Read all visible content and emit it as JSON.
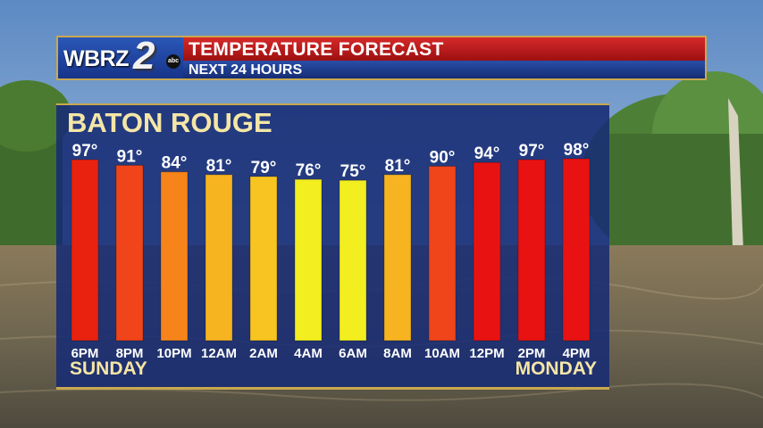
{
  "header": {
    "logo": "WBRZ",
    "logo_number": "2",
    "logo_network": "abc",
    "title": "TEMPERATURE FORECAST",
    "subtitle": "NEXT 24 HOURS"
  },
  "panel": {
    "city": "BATON ROUGE",
    "day_start": "SUNDAY",
    "day_end": "MONDAY"
  },
  "colors": {
    "hot": "#e81212",
    "orange_red": "#f0441a",
    "orange": "#f7841a",
    "amber": "#f7b421",
    "yellow": "#f2ee1f",
    "panel": "#172b74",
    "label": "#f5e6a6"
  },
  "chart_data": {
    "type": "bar",
    "title": "TEMPERATURE FORECAST",
    "subtitle": "NEXT 24 HOURS",
    "categories": [
      "6PM",
      "8PM",
      "10PM",
      "12AM",
      "2AM",
      "4AM",
      "6AM",
      "8AM",
      "10AM",
      "12PM",
      "2PM",
      "4PM"
    ],
    "values": [
      97,
      91,
      84,
      81,
      79,
      76,
      75,
      81,
      90,
      94,
      97,
      98
    ],
    "value_labels": [
      "97°",
      "91°",
      "84°",
      "81°",
      "79°",
      "76°",
      "75°",
      "81°",
      "90°",
      "94°",
      "97°",
      "98°"
    ],
    "bar_colors": [
      "#e8220f",
      "#f0441a",
      "#f7841a",
      "#f7b421",
      "#f7c421",
      "#f2ee1f",
      "#f2ee1f",
      "#f7b421",
      "#f0441a",
      "#e81212",
      "#e81212",
      "#e81212"
    ],
    "xlabel": "",
    "ylabel": "",
    "grid": false,
    "legend": "none"
  }
}
